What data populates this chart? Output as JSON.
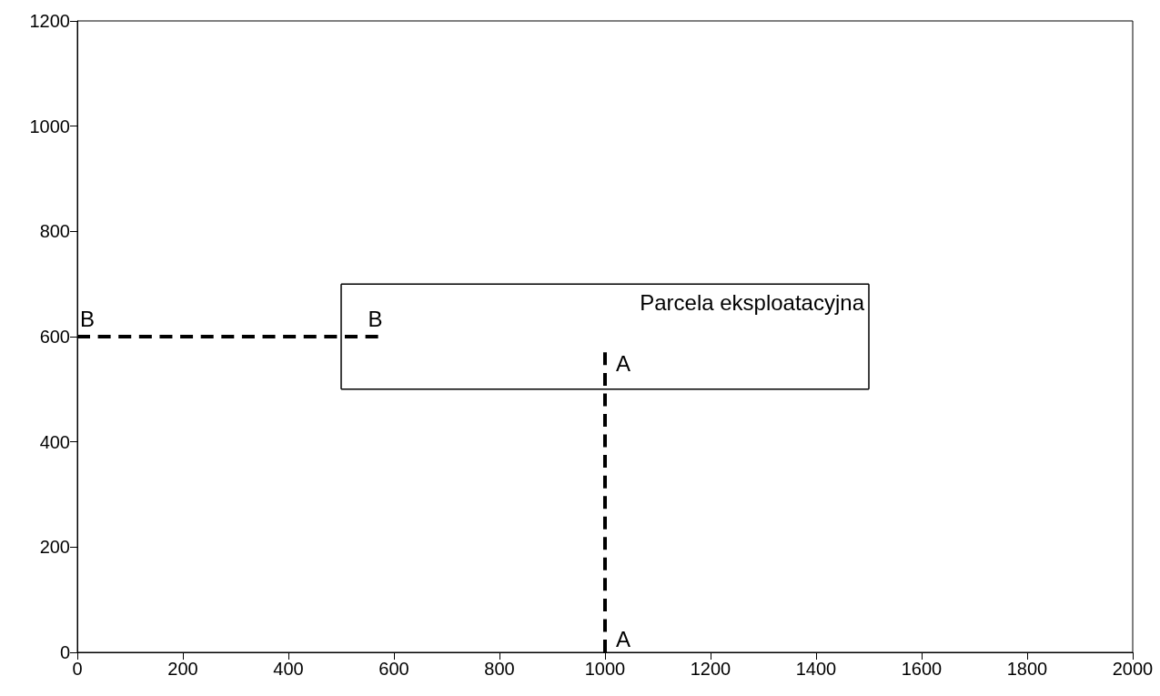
{
  "chart_data": {
    "type": "line",
    "series": [
      {
        "color": "#000000",
        "x": [
          500,
          1500
        ],
        "values": [
          500,
          500
        ],
        "line_style": "solid"
      },
      {
        "color": "#000000",
        "x": [
          1500,
          1500
        ],
        "values": [
          500,
          700
        ],
        "line_style": "solid"
      },
      {
        "color": "#000000",
        "x": [
          500,
          1500
        ],
        "values": [
          700,
          700
        ],
        "line_style": "solid"
      },
      {
        "color": "#000000",
        "x": [
          500,
          500
        ],
        "values": [
          500,
          700
        ],
        "line_style": "solid"
      },
      {
        "color": "#000000",
        "x": [
          1000,
          1000
        ],
        "values": [
          0,
          570
        ],
        "line_style": "dashed"
      },
      {
        "color": "#000000",
        "x": [
          0,
          570
        ],
        "values": [
          600,
          600
        ],
        "line_style": "dashed"
      }
    ],
    "annotations": [
      {
        "text": "Parcela eksploatacyjna",
        "x": 1500,
        "y": 700
      },
      {
        "text": "A",
        "x": 1000,
        "y": 570
      },
      {
        "text": "A",
        "x": 1000,
        "y": 0
      },
      {
        "text": "B",
        "x": 0,
        "y": 600
      },
      {
        "text": "B",
        "x": 570,
        "y": 600
      }
    ],
    "xlim": [
      0,
      2000
    ],
    "xticks": [
      0,
      200,
      400,
      600,
      800,
      1000,
      1200,
      1400,
      1600,
      1800,
      2000
    ],
    "ylim": [
      0,
      1200
    ],
    "yticks": [
      0,
      200,
      400,
      600,
      800,
      1000,
      1200
    ],
    "marker": "none",
    "grid": false
  }
}
